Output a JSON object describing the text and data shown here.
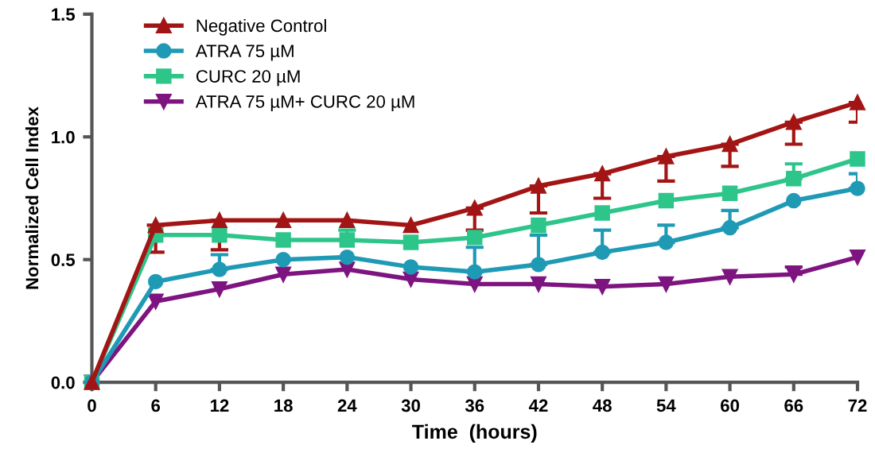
{
  "chart_data": {
    "type": "line",
    "xlabel": "Time  (hours)",
    "ylabel": "Normalized Cell Index",
    "x": [
      0,
      6,
      12,
      18,
      24,
      30,
      36,
      42,
      48,
      54,
      60,
      66,
      72
    ],
    "xlim": [
      0,
      72
    ],
    "xticks": [
      0,
      6,
      12,
      18,
      24,
      30,
      36,
      42,
      48,
      54,
      60,
      66,
      72
    ],
    "ylim": [
      0,
      1.5
    ],
    "yticks": [
      {
        "value": 0,
        "label": "0.0"
      },
      {
        "value": 0.5,
        "label": "0.5"
      },
      {
        "value": 1.0,
        "label": "1.0"
      },
      {
        "value": 1.5,
        "label": "1.5"
      }
    ],
    "grid": false,
    "legend": "top left",
    "line_style": "solid",
    "series": [
      {
        "name": "Negative Control",
        "color": "#a31515",
        "marker": "triangle",
        "values": [
          0,
          0.64,
          0.66,
          0.66,
          0.66,
          0.64,
          0.71,
          0.8,
          0.85,
          0.92,
          0.97,
          1.06,
          1.14
        ],
        "errors": [
          null,
          [
            0.53,
            0.64
          ],
          [
            0.54,
            0.66
          ],
          null,
          null,
          null,
          [
            0.62,
            0.71
          ],
          [
            0.69,
            0.8
          ],
          [
            0.75,
            0.85
          ],
          [
            0.82,
            0.92
          ],
          [
            0.88,
            0.97
          ],
          [
            0.97,
            1.06
          ],
          [
            1.06,
            1.14
          ]
        ]
      },
      {
        "name": "ATRA 75 µM",
        "color": "#1f9ab5",
        "marker": "circle",
        "values": [
          0,
          0.41,
          0.46,
          0.5,
          0.51,
          0.47,
          0.45,
          0.48,
          0.53,
          0.57,
          0.63,
          0.74,
          0.79
        ],
        "errors": [
          null,
          null,
          [
            0.46,
            0.52
          ],
          null,
          null,
          null,
          [
            0.45,
            0.55
          ],
          [
            0.48,
            0.6
          ],
          [
            0.53,
            0.62
          ],
          [
            0.57,
            0.64
          ],
          [
            0.63,
            0.7
          ],
          null,
          [
            0.79,
            0.85
          ]
        ]
      },
      {
        "name": "CURC 20 µM",
        "color": "#2dc58a",
        "marker": "square",
        "values": [
          0,
          0.6,
          0.6,
          0.58,
          0.58,
          0.57,
          0.59,
          0.64,
          0.69,
          0.74,
          0.77,
          0.83,
          0.91
        ],
        "errors": [
          null,
          null,
          null,
          null,
          [
            0.58,
            0.62
          ],
          null,
          null,
          null,
          null,
          null,
          null,
          [
            0.83,
            0.89
          ],
          null
        ]
      },
      {
        "name": "ATRA 75 µM+ CURC 20 µM",
        "color": "#7e1480",
        "marker": "triangle_down",
        "values": [
          0,
          0.33,
          0.38,
          0.44,
          0.46,
          0.42,
          0.4,
          0.4,
          0.39,
          0.4,
          0.43,
          0.44,
          0.51
        ],
        "errors": [
          null,
          null,
          null,
          null,
          null,
          null,
          null,
          null,
          null,
          null,
          null,
          [
            0.44,
            0.47
          ],
          null
        ]
      }
    ]
  }
}
